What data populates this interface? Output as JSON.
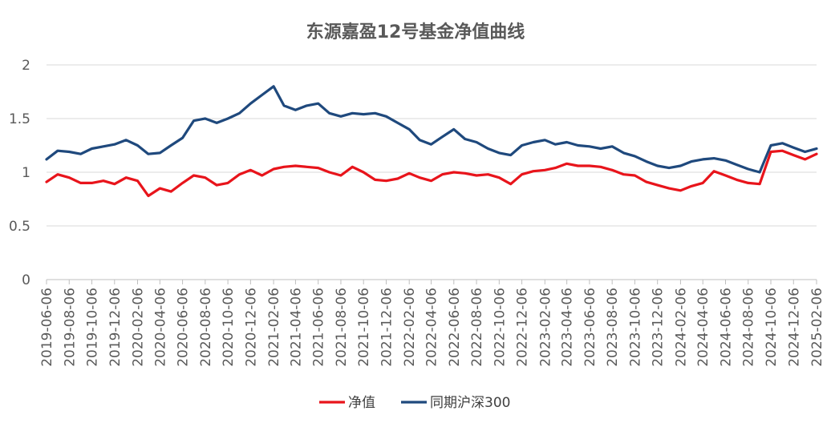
{
  "chart_data": {
    "type": "line",
    "title": "东源嘉盈12号基金净值曲线",
    "xlabel": "",
    "ylabel": "",
    "ylim": [
      0,
      2
    ],
    "yticks": [
      "0",
      "0.5",
      "1",
      "1.5",
      "2"
    ],
    "grid": true,
    "legend_position": "bottom",
    "x_tick_labels": [
      "2019-06-06",
      "2019-08-06",
      "2019-10-06",
      "2019-12-06",
      "2020-02-06",
      "2020-04-06",
      "2020-06-06",
      "2020-08-06",
      "2020-10-06",
      "2020-12-06",
      "2021-02-06",
      "2021-04-06",
      "2021-06-06",
      "2021-08-06",
      "2021-10-06",
      "2021-12-06",
      "2022-02-06",
      "2022-04-06",
      "2022-06-06",
      "2022-08-06",
      "2022-10-06",
      "2022-12-06",
      "2023-02-06",
      "2023-04-06",
      "2023-06-06",
      "2023-08-06",
      "2023-10-06",
      "2023-12-06",
      "2024-02-06",
      "2024-04-06",
      "2024-06-06",
      "2024-08-06",
      "2024-10-06",
      "2024-12-06",
      "2025-02-06"
    ],
    "x": [
      "2019-06-06",
      "2019-07-06",
      "2019-08-06",
      "2019-09-06",
      "2019-10-06",
      "2019-11-06",
      "2019-12-06",
      "2020-01-06",
      "2020-02-06",
      "2020-03-06",
      "2020-04-06",
      "2020-05-06",
      "2020-06-06",
      "2020-07-06",
      "2020-08-06",
      "2020-09-06",
      "2020-10-06",
      "2020-11-06",
      "2020-12-06",
      "2021-01-06",
      "2021-02-06",
      "2021-03-06",
      "2021-04-06",
      "2021-05-06",
      "2021-06-06",
      "2021-07-06",
      "2021-08-06",
      "2021-09-06",
      "2021-10-06",
      "2021-11-06",
      "2021-12-06",
      "2022-01-06",
      "2022-02-06",
      "2022-03-06",
      "2022-04-06",
      "2022-05-06",
      "2022-06-06",
      "2022-07-06",
      "2022-08-06",
      "2022-09-06",
      "2022-10-06",
      "2022-11-06",
      "2022-12-06",
      "2023-01-06",
      "2023-02-06",
      "2023-03-06",
      "2023-04-06",
      "2023-05-06",
      "2023-06-06",
      "2023-07-06",
      "2023-08-06",
      "2023-09-06",
      "2023-10-06",
      "2023-11-06",
      "2023-12-06",
      "2024-01-06",
      "2024-02-06",
      "2024-03-06",
      "2024-04-06",
      "2024-05-06",
      "2024-06-06",
      "2024-07-06",
      "2024-08-06",
      "2024-09-06",
      "2024-10-06",
      "2024-11-06",
      "2024-12-06",
      "2025-01-06",
      "2025-02-06"
    ],
    "series": [
      {
        "name": "净值",
        "color": "#e8141b",
        "values": [
          0.91,
          0.98,
          0.95,
          0.9,
          0.9,
          0.92,
          0.89,
          0.95,
          0.92,
          0.78,
          0.85,
          0.82,
          0.9,
          0.97,
          0.95,
          0.88,
          0.9,
          0.98,
          1.02,
          0.97,
          1.03,
          1.05,
          1.06,
          1.05,
          1.04,
          1.0,
          0.97,
          1.05,
          1.0,
          0.93,
          0.92,
          0.94,
          0.99,
          0.95,
          0.92,
          0.98,
          1.0,
          0.99,
          0.97,
          0.98,
          0.95,
          0.89,
          0.98,
          1.01,
          1.02,
          1.04,
          1.08,
          1.06,
          1.06,
          1.05,
          1.02,
          0.98,
          0.97,
          0.91,
          0.88,
          0.85,
          0.83,
          0.87,
          0.9,
          1.01,
          0.97,
          0.93,
          0.9,
          0.89,
          1.19,
          1.2,
          1.16,
          1.12,
          1.17
        ]
      },
      {
        "name": "同期沪深300",
        "color": "#1f497d",
        "values": [
          1.12,
          1.2,
          1.19,
          1.17,
          1.22,
          1.24,
          1.26,
          1.3,
          1.25,
          1.17,
          1.18,
          1.25,
          1.32,
          1.48,
          1.5,
          1.46,
          1.5,
          1.55,
          1.64,
          1.72,
          1.8,
          1.62,
          1.58,
          1.62,
          1.64,
          1.55,
          1.52,
          1.55,
          1.54,
          1.55,
          1.52,
          1.46,
          1.4,
          1.3,
          1.26,
          1.33,
          1.4,
          1.31,
          1.28,
          1.22,
          1.18,
          1.16,
          1.25,
          1.28,
          1.3,
          1.26,
          1.28,
          1.25,
          1.24,
          1.22,
          1.24,
          1.18,
          1.15,
          1.1,
          1.06,
          1.04,
          1.06,
          1.1,
          1.12,
          1.13,
          1.11,
          1.07,
          1.03,
          1.0,
          1.25,
          1.27,
          1.23,
          1.19,
          1.22
        ]
      }
    ]
  }
}
